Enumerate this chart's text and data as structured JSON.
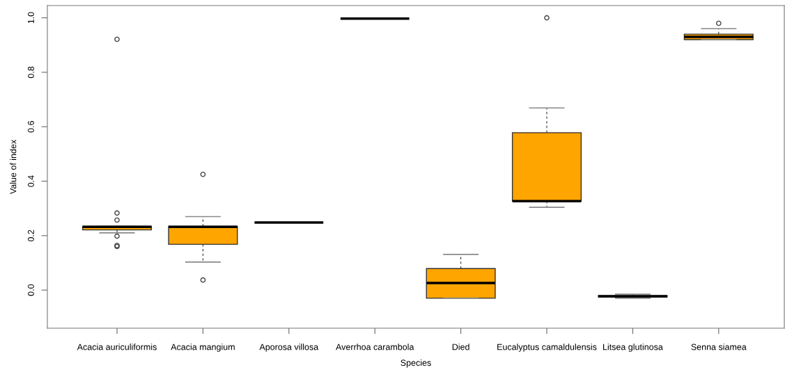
{
  "chart_data": {
    "type": "box",
    "xlabel": "Species",
    "ylabel": "Value of index",
    "categories": [
      "Acacia auriculiformis",
      "Acacia mangium",
      "Aporosa villosa",
      "Averrhoa carambola",
      "Died",
      "Eucalyptus camaldulensis",
      "Litsea glutinosa",
      "Senna siamea"
    ],
    "series": [
      {
        "color": "#ffa500",
        "boxes": [
          {
            "low": 0.21,
            "q1": 0.221,
            "median": 0.232,
            "q3": 0.234,
            "high": 0.234,
            "outliers": [
              0.921,
              0.283,
              0.257,
              0.198,
              0.164,
              0.16
            ]
          },
          {
            "low": 0.103,
            "q1": 0.168,
            "median": 0.232,
            "q3": 0.234,
            "high": 0.27,
            "outliers": [
              0.425,
              0.037
            ]
          },
          {
            "low": 0.248,
            "q1": 0.248,
            "median": 0.248,
            "q3": 0.248,
            "high": 0.248
          },
          {
            "low": 0.997,
            "q1": 0.997,
            "median": 0.997,
            "q3": 0.997,
            "high": 0.997
          },
          {
            "low": -0.03,
            "q1": -0.03,
            "median": 0.026,
            "q3": 0.079,
            "high": 0.131
          },
          {
            "low": 0.304,
            "q1": 0.327,
            "median": 0.327,
            "q3": 0.578,
            "high": 0.669,
            "outliers": [
              1.0
            ]
          },
          {
            "low": -0.03,
            "q1": -0.026,
            "median": -0.023,
            "q3": -0.02,
            "high": -0.015
          },
          {
            "low": 0.92,
            "q1": 0.92,
            "median": 0.93,
            "q3": 0.94,
            "high": 0.96,
            "outliers": [
              0.98
            ]
          }
        ]
      }
    ],
    "ylim": [
      -0.14,
      1.045
    ],
    "yticks": [
      {
        "value": 0,
        "label": "0.0"
      },
      0.2,
      0.4,
      0.6,
      0.8,
      {
        "value": 1,
        "label": "1.0"
      }
    ],
    "grid": false
  }
}
